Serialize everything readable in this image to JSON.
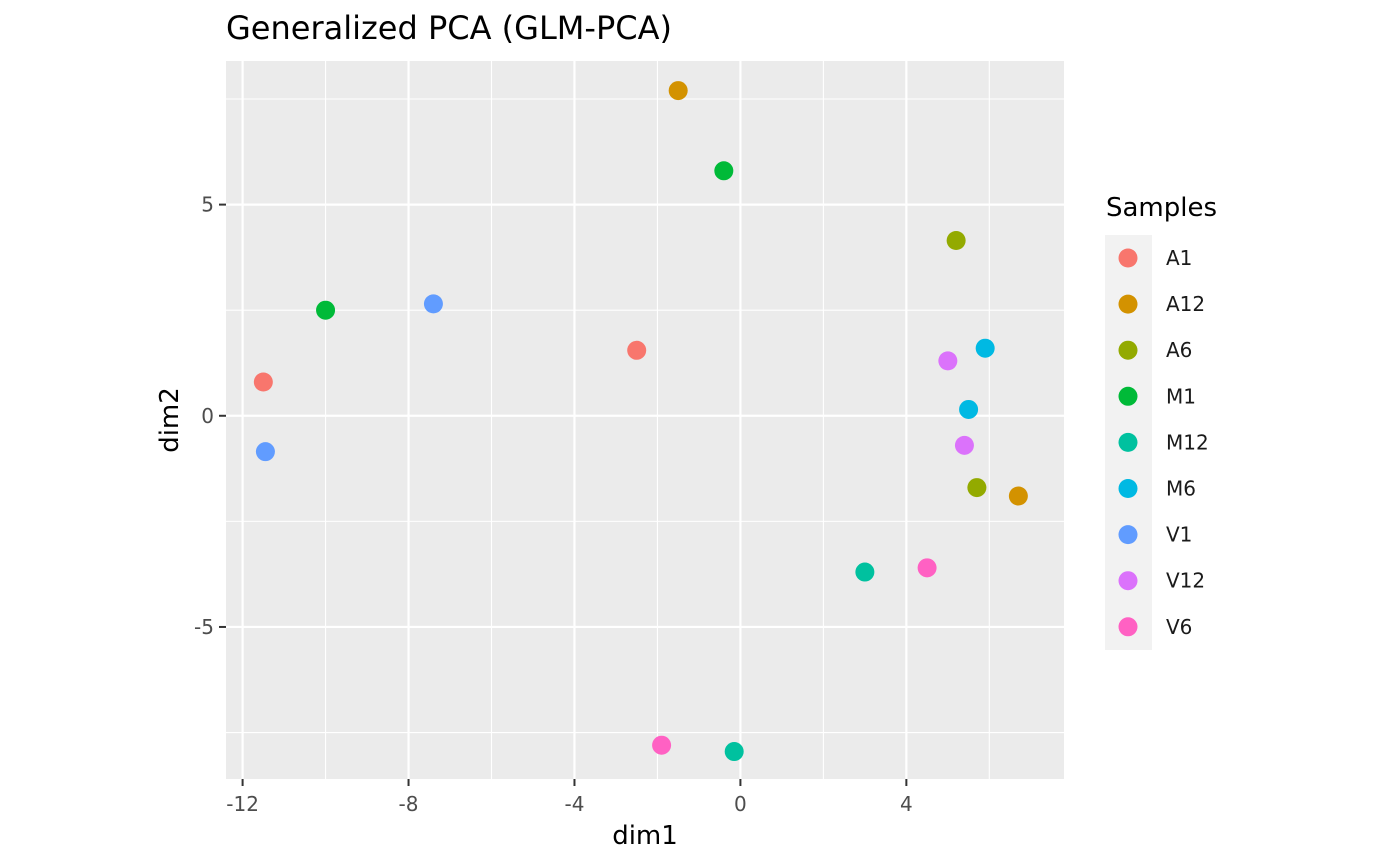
{
  "chart_data": {
    "type": "scatter",
    "title": "Generalized PCA (GLM-PCA)",
    "xlabel": "dim1",
    "ylabel": "dim2",
    "xlim": [
      -12.4,
      7.8
    ],
    "ylim": [
      -8.6,
      8.4
    ],
    "x_ticks": [
      -12,
      -8,
      -4,
      0,
      4
    ],
    "x_tick_labels": [
      "-12",
      "-8",
      "-4",
      "0",
      "4"
    ],
    "y_ticks": [
      -5,
      0,
      5
    ],
    "y_tick_labels": [
      "-5",
      "0",
      "5"
    ],
    "grid": true,
    "legend": {
      "title": "Samples",
      "position": "right"
    },
    "series": [
      {
        "name": "A1",
        "color": "#F8766D",
        "points": [
          [
            -11.5,
            0.8
          ],
          [
            -2.5,
            1.55
          ]
        ]
      },
      {
        "name": "A12",
        "color": "#D39200",
        "points": [
          [
            -1.5,
            7.7
          ],
          [
            6.7,
            -1.9
          ]
        ]
      },
      {
        "name": "A6",
        "color": "#93AA00",
        "points": [
          [
            5.2,
            4.15
          ],
          [
            5.7,
            -1.7
          ]
        ]
      },
      {
        "name": "M1",
        "color": "#00BA38",
        "points": [
          [
            -10.0,
            2.5
          ],
          [
            -0.4,
            5.8
          ]
        ]
      },
      {
        "name": "M12",
        "color": "#00C19F",
        "points": [
          [
            3.0,
            -3.7
          ],
          [
            -0.15,
            -7.95
          ]
        ]
      },
      {
        "name": "M6",
        "color": "#00B9E3",
        "points": [
          [
            5.9,
            1.6
          ],
          [
            5.5,
            0.15
          ]
        ]
      },
      {
        "name": "V1",
        "color": "#619CFF",
        "points": [
          [
            -11.45,
            -0.85
          ],
          [
            -7.4,
            2.65
          ]
        ]
      },
      {
        "name": "V12",
        "color": "#DB72FB",
        "points": [
          [
            5.0,
            1.3
          ],
          [
            5.4,
            -0.7
          ]
        ]
      },
      {
        "name": "V6",
        "color": "#FF61C3",
        "points": [
          [
            4.5,
            -3.6
          ],
          [
            -1.9,
            -7.8
          ]
        ]
      }
    ]
  }
}
